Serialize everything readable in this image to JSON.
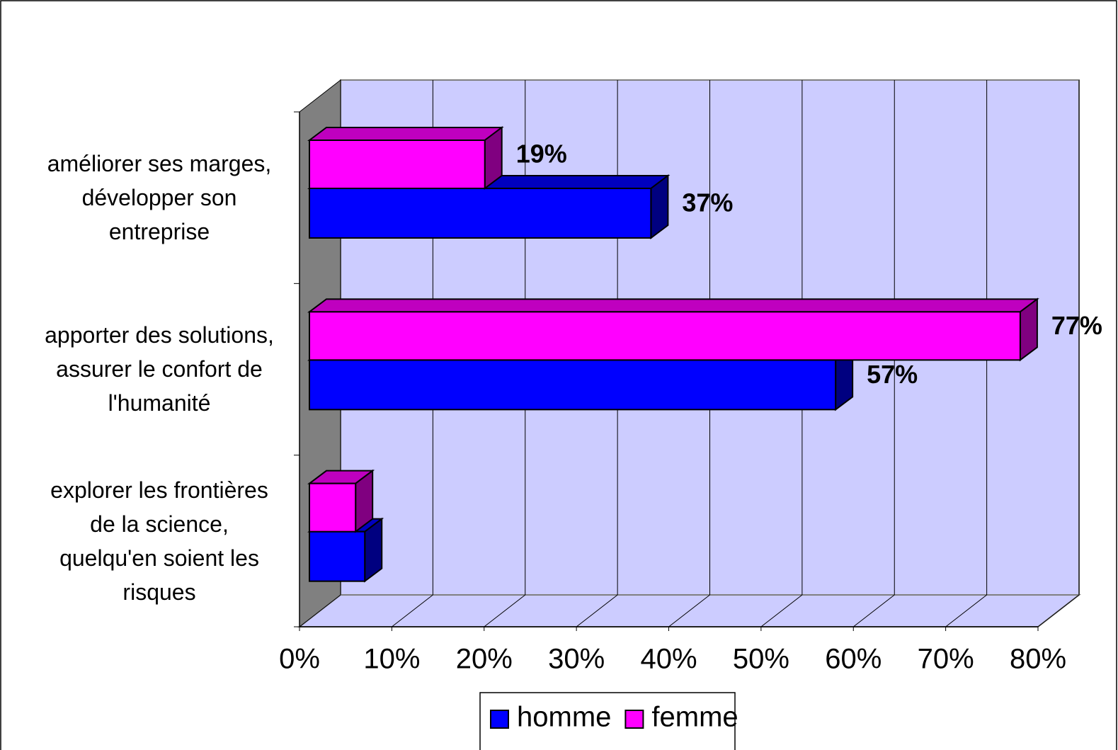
{
  "chart_data": {
    "type": "bar3d_horizontal",
    "categories": [
      "améliorer ses marges,\ndévelopper son\nentreprise",
      "apporter des solutions,\nassurer le confort de\nl'humanité",
      "explorer les frontières\nde la science,\nquelqu'en soient les\nrisques"
    ],
    "series": [
      {
        "name": "homme",
        "color": "#0000ff",
        "values": [
          37,
          57,
          6
        ],
        "value_labels": [
          "37%",
          "57%",
          null
        ]
      },
      {
        "name": "femme",
        "color": "#ff00ff",
        "values": [
          19,
          77,
          5
        ],
        "value_labels": [
          "19%",
          "77%",
          null
        ]
      }
    ],
    "xlim": [
      0,
      80
    ],
    "xticks": [
      {
        "value": 0,
        "label": "0%"
      },
      {
        "value": 10,
        "label": "10%"
      },
      {
        "value": 20,
        "label": "20%"
      },
      {
        "value": 30,
        "label": "30%"
      },
      {
        "value": 40,
        "label": "40%"
      },
      {
        "value": 50,
        "label": "50%"
      },
      {
        "value": 60,
        "label": "60%"
      },
      {
        "value": 70,
        "label": "70%"
      },
      {
        "value": 80,
        "label": "80%"
      }
    ],
    "grid": true,
    "legend": "bottom"
  }
}
